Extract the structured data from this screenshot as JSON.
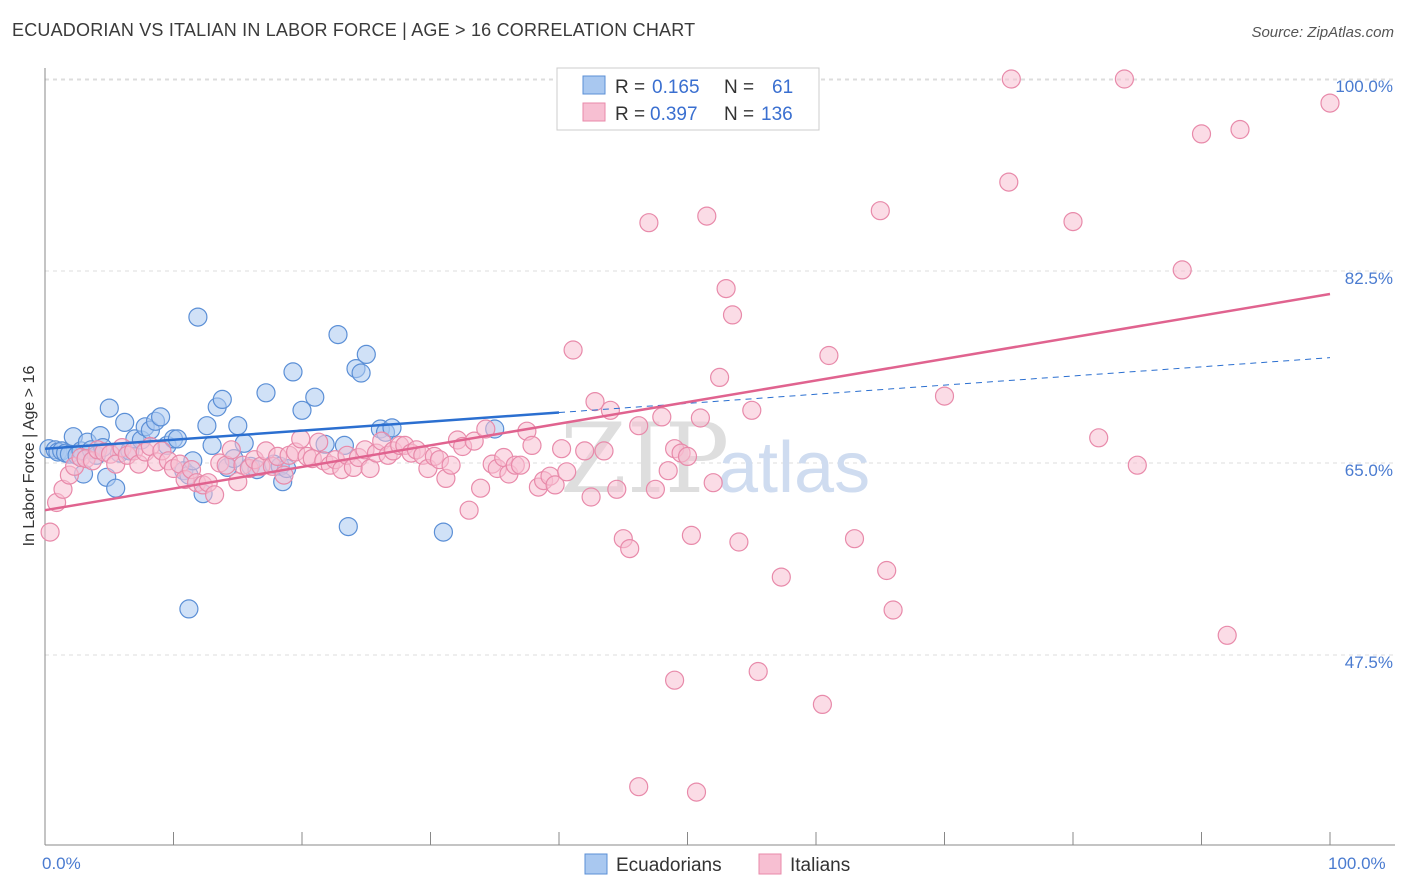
{
  "header": {
    "title": "ECUADORIAN VS ITALIAN IN LABOR FORCE | AGE > 16 CORRELATION CHART",
    "source": "Source: ZipAtlas.com"
  },
  "watermark": {
    "zip": "ZIP",
    "atlas": "atlas"
  },
  "colors": {
    "blue_fill": "#a9c8f0",
    "blue_stroke": "#5b8fd6",
    "blue_line": "#2b6fd0",
    "pink_fill": "#f7bfd2",
    "pink_stroke": "#e88aaa",
    "pink_line": "#e0638f",
    "grid": "#dddddd",
    "tick_label": "#4a7bd0"
  },
  "legend": {
    "r_label": "R =",
    "n_label": "N =",
    "ecuadorians": {
      "r": "0.165",
      "n": "61"
    },
    "italians": {
      "r": "0.397",
      "n": "136"
    }
  },
  "chart_data": {
    "type": "scatter",
    "title": "ECUADORIAN VS ITALIAN IN LABOR FORCE | AGE > 16 CORRELATION CHART",
    "xlabel": "",
    "ylabel": "In Labor Force | Age > 16",
    "xlim": [
      0,
      100
    ],
    "ylim": [
      32,
      102
    ],
    "x_tick_labels": [
      "0.0%",
      "100.0%"
    ],
    "y_ticks": [
      47.5,
      65.0,
      82.5,
      100.0
    ],
    "y_tick_labels": [
      "47.5%",
      "65.0%",
      "82.5%",
      "100.0%"
    ],
    "grid": true,
    "legend_position": "top-center",
    "series": [
      {
        "name": "Ecuadorians",
        "r": 0.165,
        "n": 61,
        "trend": {
          "x0": 0,
          "y0": 66.3,
          "x1": 40,
          "y1": 69.6,
          "dashed_to_x": 100,
          "dashed_to_y": 74.6
        },
        "points": [
          [
            0.3,
            66.3
          ],
          [
            0.8,
            66.2
          ],
          [
            1.0,
            66.0
          ],
          [
            1.3,
            66.1
          ],
          [
            1.6,
            65.9
          ],
          [
            1.9,
            65.8
          ],
          [
            2.2,
            67.4
          ],
          [
            2.5,
            65.7
          ],
          [
            2.8,
            66.1
          ],
          [
            3.0,
            64.0
          ],
          [
            3.3,
            66.9
          ],
          [
            3.6,
            66.2
          ],
          [
            4.0,
            65.7
          ],
          [
            4.3,
            67.5
          ],
          [
            4.5,
            66.4
          ],
          [
            4.8,
            63.7
          ],
          [
            5.0,
            70.0
          ],
          [
            5.5,
            62.7
          ],
          [
            5.8,
            65.9
          ],
          [
            6.2,
            68.7
          ],
          [
            6.6,
            66.1
          ],
          [
            7.0,
            67.2
          ],
          [
            7.5,
            67.1
          ],
          [
            7.8,
            68.3
          ],
          [
            8.2,
            68.0
          ],
          [
            8.6,
            68.8
          ],
          [
            9.0,
            69.2
          ],
          [
            9.5,
            66.6
          ],
          [
            10.0,
            67.2
          ],
          [
            10.3,
            67.2
          ],
          [
            10.8,
            64.3
          ],
          [
            11.2,
            63.9
          ],
          [
            11.5,
            65.2
          ],
          [
            11.9,
            78.3
          ],
          [
            12.3,
            62.2
          ],
          [
            12.6,
            68.4
          ],
          [
            13.0,
            66.6
          ],
          [
            13.4,
            70.1
          ],
          [
            13.8,
            70.8
          ],
          [
            14.2,
            64.6
          ],
          [
            14.7,
            65.4
          ],
          [
            15.0,
            68.4
          ],
          [
            15.5,
            66.8
          ],
          [
            16.0,
            64.7
          ],
          [
            16.5,
            64.4
          ],
          [
            17.2,
            71.4
          ],
          [
            17.8,
            64.9
          ],
          [
            18.3,
            64.7
          ],
          [
            18.5,
            63.3
          ],
          [
            18.8,
            64.5
          ],
          [
            19.3,
            73.3
          ],
          [
            20.0,
            69.8
          ],
          [
            21.0,
            71.0
          ],
          [
            21.8,
            66.7
          ],
          [
            22.8,
            76.7
          ],
          [
            23.3,
            66.6
          ],
          [
            23.6,
            59.2
          ],
          [
            24.2,
            73.6
          ],
          [
            24.6,
            73.2
          ],
          [
            25.0,
            74.9
          ],
          [
            26.1,
            68.1
          ],
          [
            26.5,
            67.8
          ],
          [
            27.0,
            68.2
          ],
          [
            31.0,
            58.7
          ],
          [
            35.0,
            68.1
          ],
          [
            11.2,
            51.7
          ]
        ]
      },
      {
        "name": "Italians",
        "r": 0.397,
        "n": 136,
        "trend": {
          "x0": 0,
          "y0": 60.7,
          "x1": 100,
          "y1": 80.4
        },
        "points": [
          [
            0.4,
            58.7
          ],
          [
            0.9,
            61.4
          ],
          [
            1.4,
            62.6
          ],
          [
            1.9,
            63.9
          ],
          [
            2.3,
            64.7
          ],
          [
            2.8,
            65.5
          ],
          [
            3.2,
            65.4
          ],
          [
            3.7,
            65.2
          ],
          [
            4.1,
            66.2
          ],
          [
            4.6,
            66.0
          ],
          [
            5.1,
            65.8
          ],
          [
            5.5,
            64.9
          ],
          [
            6.0,
            66.4
          ],
          [
            6.4,
            65.7
          ],
          [
            6.9,
            66.1
          ],
          [
            7.3,
            64.9
          ],
          [
            7.8,
            66.0
          ],
          [
            8.2,
            66.5
          ],
          [
            8.7,
            65.1
          ],
          [
            9.1,
            66.1
          ],
          [
            9.6,
            65.2
          ],
          [
            10.0,
            64.5
          ],
          [
            10.5,
            64.9
          ],
          [
            10.9,
            63.5
          ],
          [
            11.4,
            64.4
          ],
          [
            11.8,
            63.2
          ],
          [
            12.3,
            63.0
          ],
          [
            12.7,
            63.2
          ],
          [
            13.2,
            62.1
          ],
          [
            13.6,
            65.0
          ],
          [
            14.1,
            64.8
          ],
          [
            14.5,
            66.2
          ],
          [
            15.0,
            63.3
          ],
          [
            15.4,
            64.8
          ],
          [
            15.9,
            64.5
          ],
          [
            16.3,
            65.3
          ],
          [
            16.8,
            64.7
          ],
          [
            17.2,
            66.1
          ],
          [
            17.7,
            64.7
          ],
          [
            18.1,
            65.6
          ],
          [
            18.6,
            63.9
          ],
          [
            19.0,
            65.7
          ],
          [
            19.5,
            66.0
          ],
          [
            19.9,
            67.2
          ],
          [
            20.4,
            65.6
          ],
          [
            20.8,
            65.4
          ],
          [
            21.3,
            66.9
          ],
          [
            21.7,
            65.2
          ],
          [
            22.2,
            64.8
          ],
          [
            22.6,
            65.3
          ],
          [
            23.1,
            64.4
          ],
          [
            23.5,
            65.7
          ],
          [
            24.0,
            64.6
          ],
          [
            24.4,
            65.5
          ],
          [
            24.9,
            66.2
          ],
          [
            25.3,
            64.5
          ],
          [
            25.8,
            65.9
          ],
          [
            26.2,
            67.0
          ],
          [
            26.7,
            65.7
          ],
          [
            27.1,
            66.1
          ],
          [
            27.6,
            66.6
          ],
          [
            28.0,
            66.6
          ],
          [
            28.5,
            65.9
          ],
          [
            28.9,
            66.2
          ],
          [
            29.4,
            65.7
          ],
          [
            29.8,
            64.5
          ],
          [
            30.3,
            65.6
          ],
          [
            30.7,
            65.3
          ],
          [
            31.2,
            63.6
          ],
          [
            31.6,
            64.8
          ],
          [
            32.1,
            67.1
          ],
          [
            32.5,
            66.5
          ],
          [
            33.0,
            60.7
          ],
          [
            33.4,
            67.0
          ],
          [
            33.9,
            62.7
          ],
          [
            34.3,
            68.1
          ],
          [
            34.8,
            64.9
          ],
          [
            35.2,
            64.5
          ],
          [
            35.7,
            65.5
          ],
          [
            36.1,
            64.0
          ],
          [
            36.6,
            64.8
          ],
          [
            37.0,
            64.8
          ],
          [
            37.5,
            67.9
          ],
          [
            37.9,
            66.6
          ],
          [
            38.4,
            62.8
          ],
          [
            38.8,
            63.4
          ],
          [
            39.3,
            63.8
          ],
          [
            39.7,
            63.0
          ],
          [
            40.2,
            66.3
          ],
          [
            40.6,
            64.2
          ],
          [
            41.1,
            75.3
          ],
          [
            42.0,
            66.1
          ],
          [
            42.5,
            61.9
          ],
          [
            42.8,
            70.6
          ],
          [
            43.5,
            66.1
          ],
          [
            44.0,
            69.8
          ],
          [
            44.5,
            62.6
          ],
          [
            45.0,
            58.1
          ],
          [
            45.5,
            57.2
          ],
          [
            46.2,
            68.4
          ],
          [
            47.0,
            86.9
          ],
          [
            47.5,
            62.6
          ],
          [
            48.0,
            69.2
          ],
          [
            48.5,
            64.3
          ],
          [
            49.0,
            66.3
          ],
          [
            49.5,
            65.9
          ],
          [
            50.0,
            65.6
          ],
          [
            50.3,
            58.4
          ],
          [
            51.0,
            69.1
          ],
          [
            51.5,
            87.5
          ],
          [
            52.0,
            63.2
          ],
          [
            52.5,
            72.8
          ],
          [
            53.0,
            80.9
          ],
          [
            53.5,
            78.5
          ],
          [
            54.0,
            57.8
          ],
          [
            55.0,
            69.8
          ],
          [
            57.3,
            54.6
          ],
          [
            58.5,
            100.0
          ],
          [
            61.0,
            74.8
          ],
          [
            63.0,
            58.1
          ],
          [
            65.0,
            88.0
          ],
          [
            65.5,
            55.2
          ],
          [
            66.0,
            51.6
          ],
          [
            70.0,
            71.1
          ],
          [
            75.0,
            90.6
          ],
          [
            75.2,
            100.0
          ],
          [
            80.0,
            87.0
          ],
          [
            82.0,
            67.3
          ],
          [
            84.0,
            100.0
          ],
          [
            85.0,
            64.8
          ],
          [
            88.5,
            82.6
          ],
          [
            90.0,
            95.0
          ],
          [
            92.0,
            49.3
          ],
          [
            93.0,
            95.4
          ],
          [
            100.0,
            97.8
          ],
          [
            45.5,
            100.0
          ],
          [
            55.5,
            46.0
          ],
          [
            46.2,
            35.5
          ],
          [
            49.0,
            45.2
          ],
          [
            60.5,
            43.0
          ],
          [
            50.7,
            35.0
          ]
        ]
      }
    ]
  },
  "bottom_legend": {
    "ecuadorians": "Ecuadorians",
    "italians": "Italians"
  }
}
